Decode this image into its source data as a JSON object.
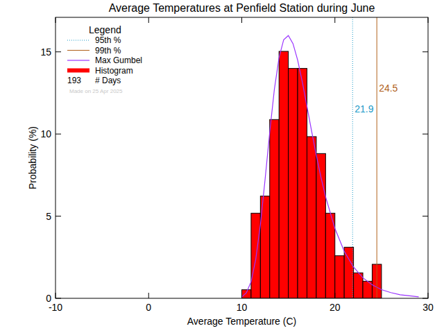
{
  "chart_data": {
    "type": "histogram",
    "title": "Average Temperatures at Penfield Station during June",
    "x_label": "Average Temperature (C)",
    "y_label": "Probability (%)",
    "xlim": [
      -10,
      30
    ],
    "xticks": [
      -10,
      0,
      10,
      20,
      30
    ],
    "ylim": [
      0,
      17.1
    ],
    "yticks": [
      0,
      5,
      10,
      15
    ],
    "legend": "top-left",
    "legend_title": "Legend",
    "days": 193,
    "days_label": "# Days",
    "note": "Made on 25 Apr 2025",
    "series": [
      {
        "name": "Histogram",
        "type": "histogram",
        "color": "#ff0000",
        "bins": [
          10,
          11,
          12,
          13,
          14,
          15,
          16,
          17,
          18,
          19,
          20,
          21,
          22,
          23,
          24,
          25
        ],
        "values": [
          0.52,
          5.18,
          6.22,
          10.88,
          15.03,
          13.99,
          13.99,
          9.84,
          8.81,
          5.18,
          2.59,
          3.11,
          1.55,
          1.04,
          2.07
        ]
      },
      {
        "name": "Max Gumbel",
        "type": "line",
        "color": "#9933ff",
        "x": [
          10,
          10.5,
          11,
          11.5,
          12,
          12.5,
          13,
          13.5,
          14,
          14.5,
          15,
          15.5,
          16,
          16.5,
          17,
          17.5,
          18,
          18.5,
          19,
          20,
          21,
          22,
          23,
          24,
          25,
          26,
          27,
          28,
          29
        ],
        "values": [
          0.08,
          0.34,
          1.01,
          2.37,
          4.49,
          7.22,
          10.1,
          12.72,
          14.65,
          15.74,
          15.99,
          15.5,
          14.5,
          13.17,
          11.68,
          10.17,
          8.71,
          7.37,
          6.18,
          4.25,
          2.86,
          1.9,
          1.25,
          0.82,
          0.53,
          0.35,
          0.22,
          0.15,
          0.09
        ]
      }
    ],
    "annotations": [
      {
        "name": "95th %",
        "value": 21.9,
        "color": "#1a9ac8",
        "line_style": "dotted"
      },
      {
        "name": "99th %",
        "value": 24.5,
        "color": "#b0601a",
        "line_style": "solid"
      }
    ]
  }
}
